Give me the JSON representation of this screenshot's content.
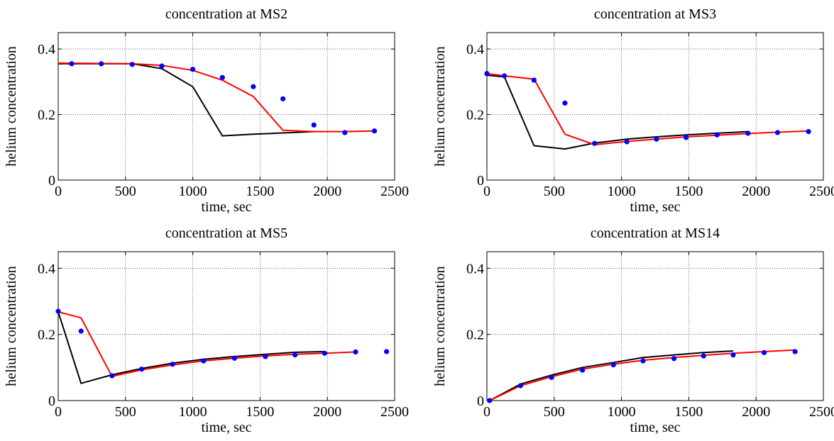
{
  "figure": {
    "background": "#ffffff",
    "colors": {
      "black": "#000000",
      "red": "#ff0000",
      "blue": "#0000ff",
      "grid": "#000000"
    }
  },
  "chart_data": [
    {
      "type": "line",
      "title": "concentration at MS2",
      "xlabel": "time, sec",
      "ylabel": "helium concentration",
      "xlim": [
        0,
        2500
      ],
      "ylim": [
        0,
        0.45
      ],
      "xticks": [
        "0",
        "500",
        "1000",
        "1500",
        "2000",
        "2500"
      ],
      "yticks": [
        "0",
        "0.2",
        "0.4"
      ],
      "grid": true,
      "series": [
        {
          "color": "#000000",
          "style": "line",
          "x": [
            0,
            550,
            770,
            1000,
            1220,
            1450,
            1900
          ],
          "y": [
            0.355,
            0.355,
            0.34,
            0.285,
            0.135,
            0.14,
            0.148
          ]
        },
        {
          "color": "#ff0000",
          "style": "line",
          "x": [
            0,
            550,
            770,
            1000,
            1220,
            1450,
            1670,
            1900,
            2130,
            2350
          ],
          "y": [
            0.357,
            0.355,
            0.35,
            0.335,
            0.305,
            0.255,
            0.152,
            0.148,
            0.148,
            0.15
          ]
        },
        {
          "color": "#0000ff",
          "style": "markers",
          "x": [
            100,
            320,
            550,
            770,
            1000,
            1220,
            1450,
            1670,
            1900,
            2130,
            2350
          ],
          "y": [
            0.355,
            0.355,
            0.353,
            0.348,
            0.338,
            0.313,
            0.285,
            0.248,
            0.168,
            0.145,
            0.15
          ]
        }
      ]
    },
    {
      "type": "line",
      "title": "concentration at MS3",
      "xlabel": "time, sec",
      "ylabel": "helium concentration",
      "xlim": [
        0,
        2500
      ],
      "ylim": [
        0,
        0.45
      ],
      "xticks": [
        "0",
        "500",
        "1000",
        "1500",
        "2000",
        "2500"
      ],
      "yticks": [
        "0",
        "0.2",
        "0.4"
      ],
      "grid": true,
      "series": [
        {
          "color": "#000000",
          "style": "line",
          "x": [
            0,
            130,
            350,
            580,
            800,
            1040,
            1260,
            1480,
            1710,
            1940
          ],
          "y": [
            0.32,
            0.315,
            0.105,
            0.095,
            0.113,
            0.125,
            0.132,
            0.138,
            0.143,
            0.148
          ]
        },
        {
          "color": "#ff0000",
          "style": "line",
          "x": [
            0,
            130,
            350,
            580,
            800,
            1040,
            1260,
            1480,
            1710,
            1940,
            2160,
            2390
          ],
          "y": [
            0.325,
            0.318,
            0.308,
            0.14,
            0.108,
            0.118,
            0.125,
            0.132,
            0.137,
            0.142,
            0.146,
            0.15
          ]
        },
        {
          "color": "#0000ff",
          "style": "markers",
          "x": [
            0,
            130,
            350,
            580,
            800,
            1040,
            1260,
            1480,
            1710,
            1940,
            2160,
            2390
          ],
          "y": [
            0.325,
            0.318,
            0.305,
            0.235,
            0.112,
            0.117,
            0.125,
            0.13,
            0.138,
            0.143,
            0.145,
            0.148
          ]
        }
      ]
    },
    {
      "type": "line",
      "title": "concentration at MS5",
      "xlabel": "time, sec",
      "ylabel": "helium concentration",
      "xlim": [
        0,
        2500
      ],
      "ylim": [
        0,
        0.45
      ],
      "xticks": [
        "0",
        "500",
        "1000",
        "1500",
        "2000",
        "2500"
      ],
      "yticks": [
        "0",
        "0.2",
        "0.4"
      ],
      "grid": true,
      "series": [
        {
          "color": "#000000",
          "style": "line",
          "x": [
            0,
            170,
            400,
            620,
            850,
            1080,
            1310,
            1540,
            1760,
            1980
          ],
          "y": [
            0.268,
            0.052,
            0.078,
            0.097,
            0.113,
            0.125,
            0.133,
            0.14,
            0.146,
            0.148
          ]
        },
        {
          "color": "#ff0000",
          "style": "line",
          "x": [
            0,
            170,
            400,
            620,
            850,
            1080,
            1310,
            1540,
            1760,
            1980,
            2210
          ],
          "y": [
            0.268,
            0.25,
            0.073,
            0.093,
            0.108,
            0.12,
            0.128,
            0.135,
            0.14,
            0.143,
            0.147
          ]
        },
        {
          "color": "#0000ff",
          "style": "markers",
          "x": [
            0,
            170,
            400,
            620,
            850,
            1080,
            1310,
            1540,
            1760,
            1980,
            2210,
            2440
          ],
          "y": [
            0.27,
            0.21,
            0.075,
            0.095,
            0.11,
            0.12,
            0.128,
            0.133,
            0.138,
            0.143,
            0.147,
            0.148
          ]
        }
      ]
    },
    {
      "type": "line",
      "title": "concentration at MS14",
      "xlabel": "time, sec",
      "ylabel": "helium concentration",
      "xlim": [
        0,
        2500
      ],
      "ylim": [
        0,
        0.45
      ],
      "xticks": [
        "0",
        "500",
        "1000",
        "1500",
        "2000",
        "2500"
      ],
      "yticks": [
        "0",
        "0.2",
        "0.4"
      ],
      "grid": true,
      "series": [
        {
          "color": "#000000",
          "style": "line",
          "x": [
            20,
            250,
            480,
            710,
            940,
            1160,
            1390,
            1610,
            1830
          ],
          "y": [
            0,
            0.05,
            0.077,
            0.1,
            0.115,
            0.13,
            0.138,
            0.145,
            0.15
          ]
        },
        {
          "color": "#ff0000",
          "style": "line",
          "x": [
            20,
            250,
            480,
            710,
            940,
            1160,
            1390,
            1610,
            1830,
            2060,
            2290
          ],
          "y": [
            0,
            0.045,
            0.072,
            0.095,
            0.11,
            0.122,
            0.13,
            0.137,
            0.143,
            0.148,
            0.153
          ]
        },
        {
          "color": "#0000ff",
          "style": "markers",
          "x": [
            20,
            250,
            480,
            710,
            940,
            1160,
            1390,
            1610,
            1830,
            2060,
            2290
          ],
          "y": [
            0,
            0.045,
            0.07,
            0.092,
            0.108,
            0.12,
            0.127,
            0.135,
            0.138,
            0.145,
            0.148
          ]
        }
      ]
    }
  ]
}
